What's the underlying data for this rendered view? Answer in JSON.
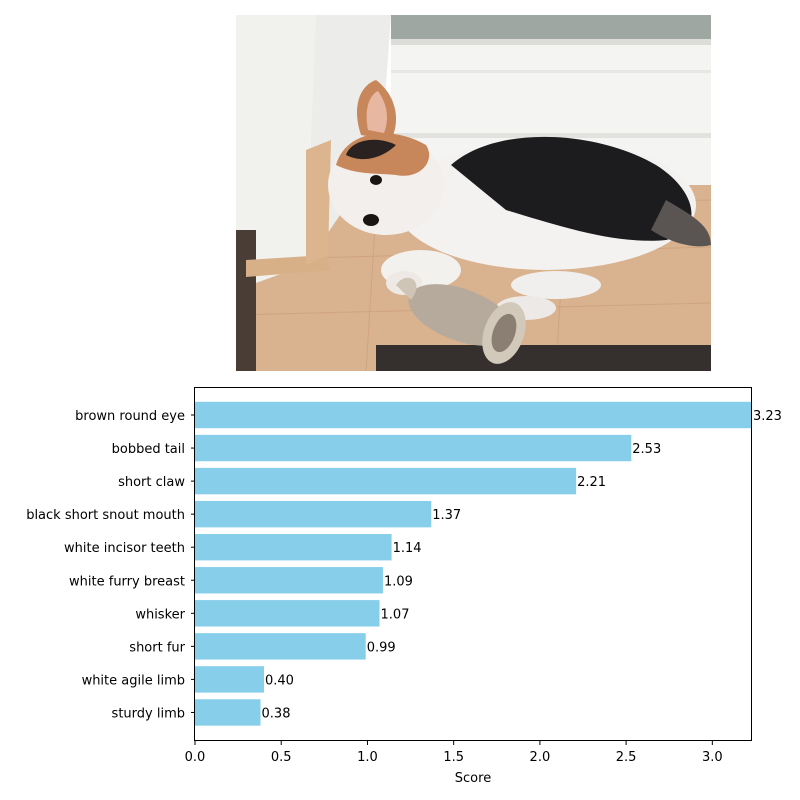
{
  "photo": {
    "subject": "puppy-photo",
    "colors": {
      "wall": "#f1f1ee",
      "floor": "#d9b28f",
      "fur_black": "#1c1b1e",
      "fur_white": "#f4f2f0",
      "fur_tan": "#c8875a",
      "mat": "#35302e"
    }
  },
  "chart_data": {
    "type": "bar",
    "orientation": "horizontal",
    "categories": [
      "brown round eye",
      "bobbed tail",
      "short claw",
      "black short snout mouth",
      "white incisor teeth",
      "white furry breast",
      "whisker",
      "short fur",
      "white agile limb",
      "sturdy limb"
    ],
    "values": [
      3.23,
      2.53,
      2.21,
      1.37,
      1.14,
      1.09,
      1.07,
      0.99,
      0.4,
      0.38
    ],
    "value_labels": [
      "3.23",
      "2.53",
      "2.21",
      "1.37",
      "1.14",
      "1.09",
      "1.07",
      "0.99",
      "0.40",
      "0.38"
    ],
    "xlabel": "Score",
    "ylabel": "",
    "xlim": [
      0,
      3.23
    ],
    "xticks": [
      "0.0",
      "0.5",
      "1.0",
      "1.5",
      "2.0",
      "2.5",
      "3.0"
    ],
    "xtick_values": [
      0,
      0.5,
      1.0,
      1.5,
      2.0,
      2.5,
      3.0
    ],
    "bar_color": "#87ceeb",
    "grid": false,
    "legend": "none"
  }
}
